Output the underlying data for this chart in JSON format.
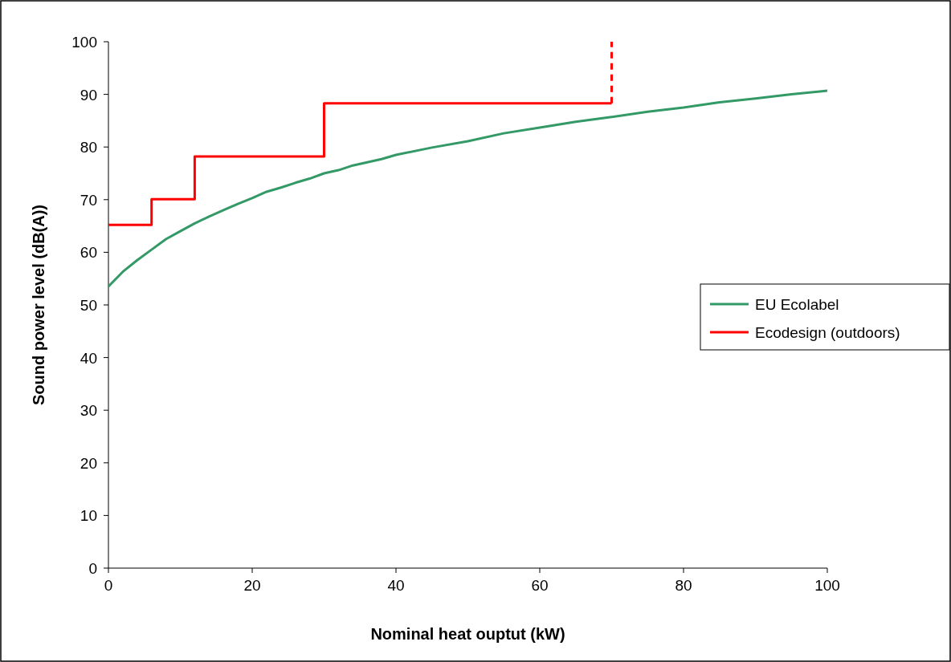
{
  "chart_data": {
    "type": "line",
    "xlabel": "Nominal heat ouptut (kW)",
    "ylabel": "Sound power level (dB(A))",
    "xlim": [
      0,
      100
    ],
    "ylim": [
      0,
      100
    ],
    "xticks": [
      0,
      20,
      40,
      60,
      80,
      100
    ],
    "yticks": [
      0,
      10,
      20,
      30,
      40,
      50,
      60,
      70,
      80,
      90,
      100
    ],
    "grid": false,
    "legend": "right",
    "marker": "none",
    "series": [
      {
        "name": "EU Ecolabel",
        "color": "#339966",
        "x": [
          0,
          2,
          4,
          6,
          8,
          10,
          12,
          14,
          16,
          18,
          20,
          22,
          24,
          26,
          28,
          30,
          32,
          34,
          36,
          38,
          40,
          45,
          50,
          55,
          60,
          65,
          70,
          75,
          80,
          85,
          90,
          95,
          100
        ],
        "values": [
          53.5,
          56.3,
          58.5,
          60.5,
          62.5,
          64,
          65.5,
          66.8,
          68,
          69.2,
          70.3,
          71.5,
          72.3,
          73.2,
          74,
          75,
          75.6,
          76.5,
          77.1,
          77.7,
          78.5,
          79.9,
          81.1,
          82.6,
          83.7,
          84.8,
          85.7,
          86.7,
          87.5,
          88.5,
          89.2,
          90,
          90.7
        ]
      },
      {
        "name": "Ecodesign (outdoors)",
        "color": "#ff0000",
        "type": "step",
        "x": [
          0,
          6,
          12,
          30,
          70
        ],
        "values": [
          65.2,
          70.1,
          78.2,
          88.3,
          88.3
        ]
      },
      {
        "color": "#ff0000",
        "type": "line",
        "line_style": "dashed",
        "x": [
          70,
          70
        ],
        "values": [
          88.3,
          100
        ]
      }
    ]
  }
}
